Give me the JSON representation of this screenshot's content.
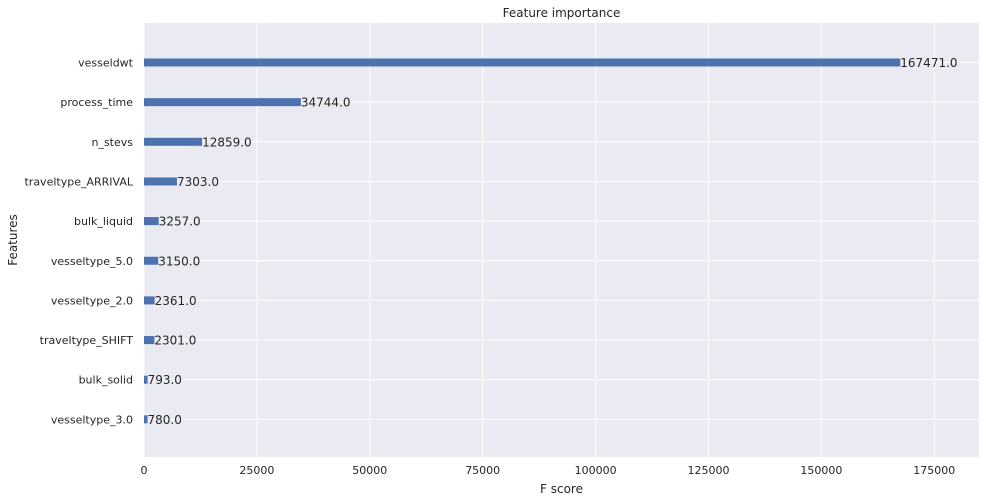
{
  "chart_data": {
    "type": "bar",
    "orientation": "horizontal",
    "title": "Feature importance",
    "xlabel": "F score",
    "ylabel": "Features",
    "categories": [
      "vesseldwt",
      "process_time",
      "n_stevs",
      "traveltype_ARRIVAL",
      "bulk_liquid",
      "vesseltype_5.0",
      "vesseltype_2.0",
      "traveltype_SHIFT",
      "bulk_solid",
      "vesseltype_3.0"
    ],
    "values": [
      167471.0,
      34744.0,
      12859.0,
      7303.0,
      3257.0,
      3150.0,
      2361.0,
      2301.0,
      793.0,
      780.0
    ],
    "data_labels": [
      "167471.0",
      "34744.0",
      "12859.0",
      "7303.0",
      "3257.0",
      "3150.0",
      "2361.0",
      "2301.0",
      "793.0",
      "780.0"
    ],
    "xlim": [
      0,
      184900
    ],
    "xticks": [
      0,
      25000,
      50000,
      75000,
      100000,
      125000,
      150000,
      175000
    ],
    "xtick_labels": [
      "0",
      "25000",
      "50000",
      "75000",
      "100000",
      "125000",
      "150000",
      "175000"
    ],
    "grid": true,
    "legend": "none",
    "colors": {
      "bar": "#4c72b0",
      "plot_background": "#eaeaf2",
      "grid": "#ffffff",
      "text": "#262626"
    }
  }
}
